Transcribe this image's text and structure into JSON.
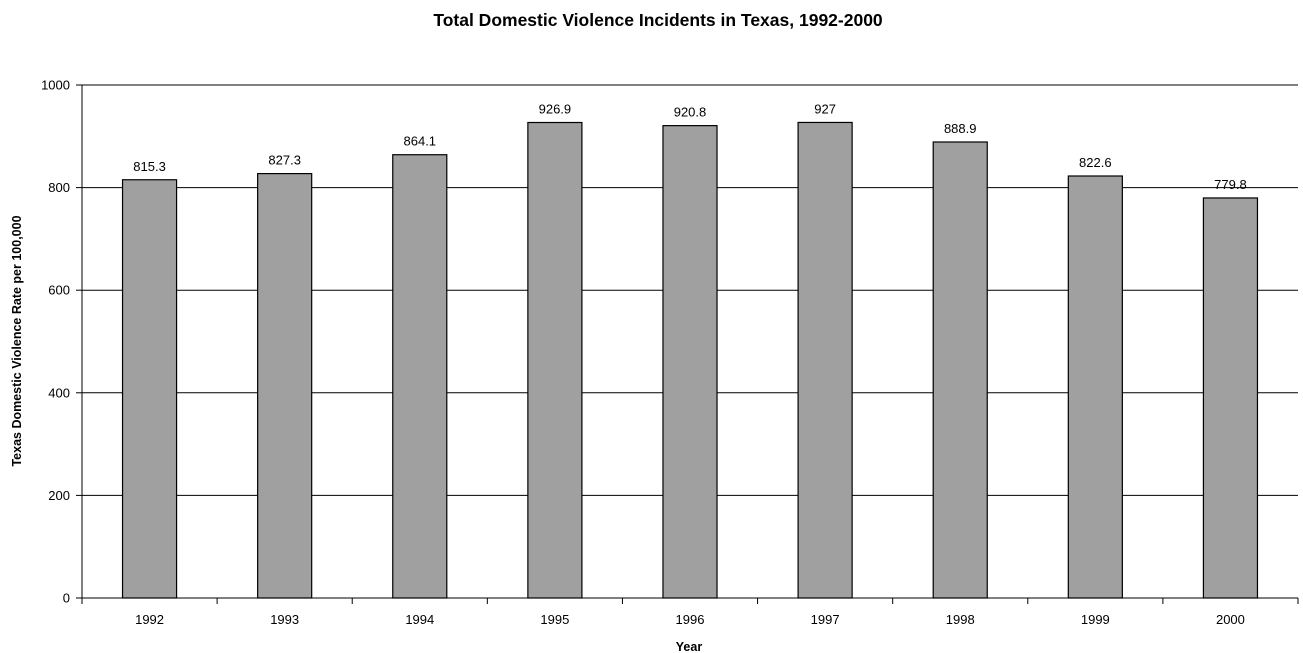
{
  "colors": {
    "bar_fill": "#a0a0a0",
    "bar_stroke": "#000000",
    "gridline": "#000000",
    "axis": "#000000",
    "background": "#ffffff"
  },
  "chart_data": {
    "type": "bar",
    "title": "Total Domestic Violence Incidents in Texas, 1992-2000",
    "xlabel": "Year",
    "ylabel": "Texas Domestic Violence Rate per 100,000",
    "categories": [
      "1992",
      "1993",
      "1994",
      "1995",
      "1996",
      "1997",
      "1998",
      "1999",
      "2000"
    ],
    "values": [
      815.3,
      827.3,
      864.1,
      926.9,
      920.8,
      927,
      888.9,
      822.6,
      779.8
    ],
    "data_labels": [
      "815.3",
      "827.3",
      "864.1",
      "926.9",
      "920.8",
      "927",
      "888.9",
      "822.6",
      "779.8"
    ],
    "ylim": [
      0,
      1000
    ],
    "yticks": [
      0,
      200,
      400,
      600,
      800,
      1000
    ],
    "ytick_labels": [
      "0",
      "200",
      "400",
      "600",
      "800",
      "1000"
    ],
    "grid": true,
    "legend": "none"
  }
}
